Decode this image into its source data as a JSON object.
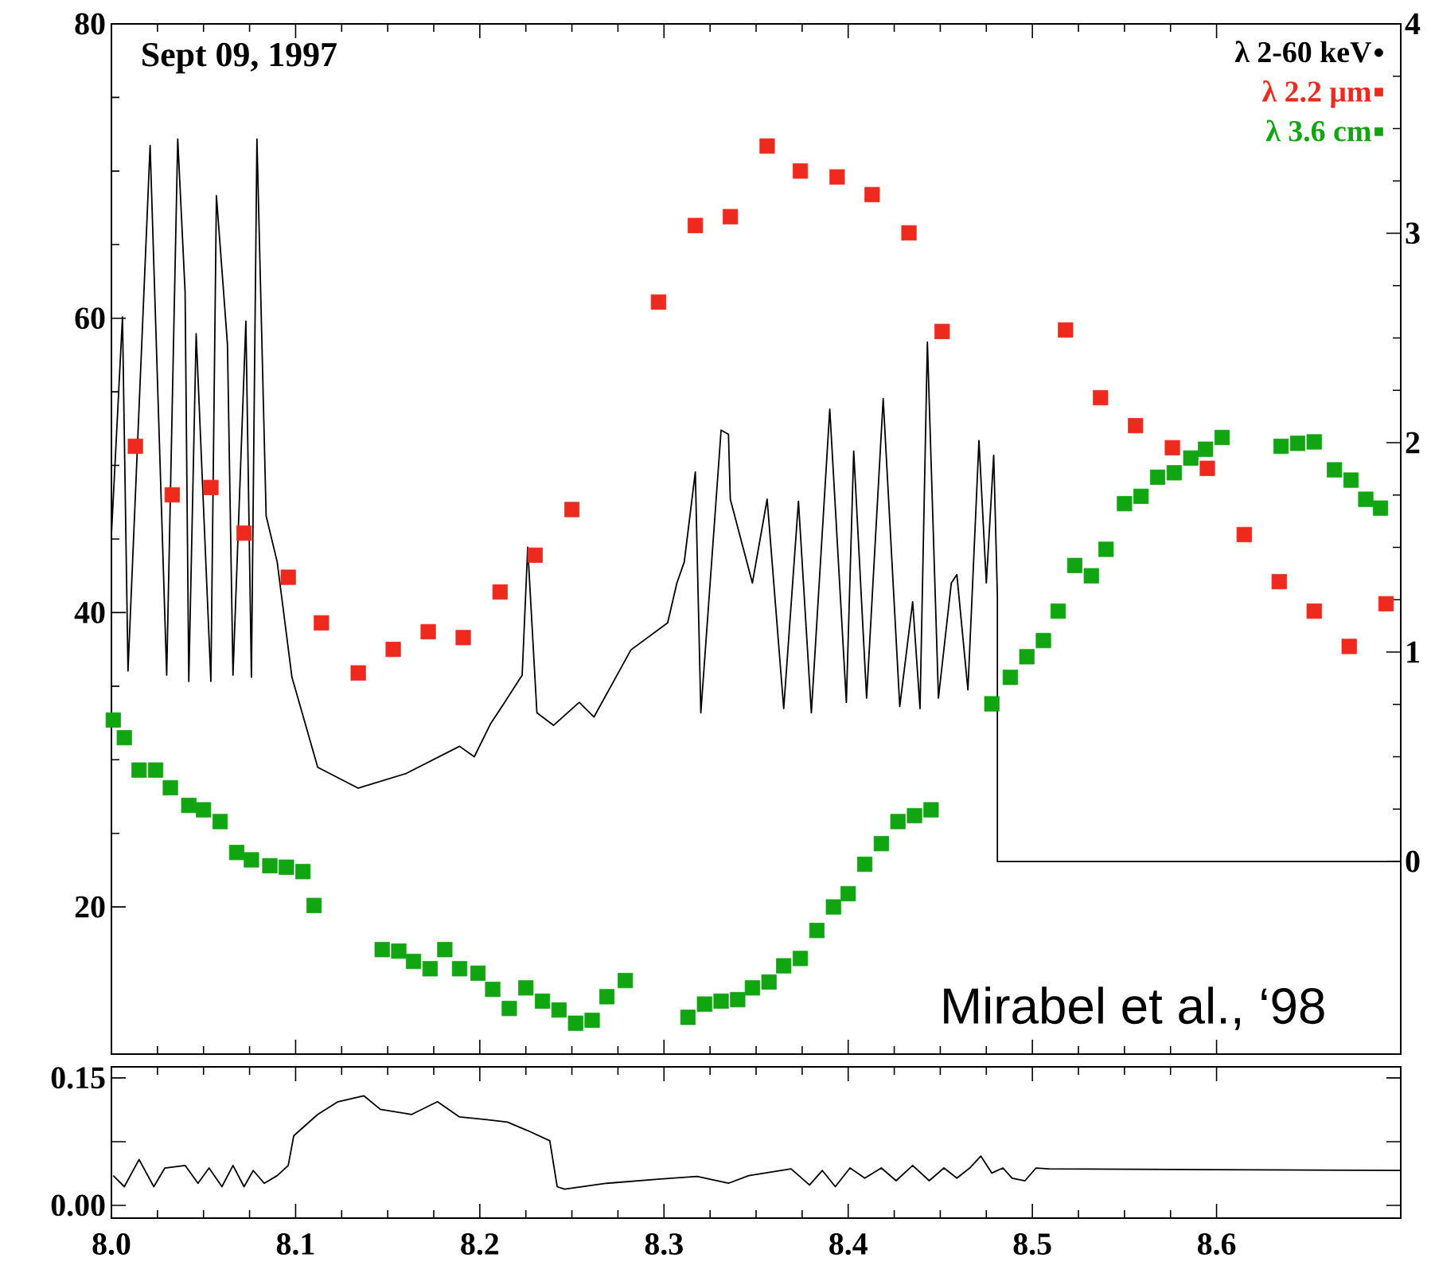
{
  "chart_data": [
    {
      "type": "scatter",
      "xlim": [
        8.0,
        8.7
      ],
      "ylim": [
        10,
        80
      ],
      "y2lim": [
        -0.92,
        4
      ],
      "xticks": [
        8.0,
        8.1,
        8.2,
        8.3,
        8.4,
        8.5,
        8.6
      ],
      "yticks": [
        20,
        40,
        60,
        80
      ],
      "y2ticks": [
        0,
        1,
        2,
        3,
        4
      ],
      "tick_labels": "y",
      "legend": "top right",
      "marker": "square",
      "annotations": [
        "Sept 09, 1997",
        "Mirabel et al., ‘98"
      ],
      "series": [
        {
          "name": "λ 2-60 keV",
          "type": "line",
          "axis": "y2",
          "marker": "none",
          "color": "#000000",
          "x": [
            8.0,
            8.006,
            8.009,
            8.021,
            8.03,
            8.036,
            8.04,
            8.042,
            8.046,
            8.054,
            8.057,
            8.063,
            8.066,
            8.073,
            8.076,
            8.079,
            8.084,
            8.09,
            8.098,
            8.112,
            8.134,
            8.16,
            8.189,
            8.197,
            8.206,
            8.212,
            8.223,
            8.226,
            8.231,
            8.24,
            8.254,
            8.262,
            8.282,
            8.302,
            8.307,
            8.311,
            8.317,
            8.32,
            8.331,
            8.335,
            8.336,
            8.348,
            8.356,
            8.365,
            8.373,
            8.38,
            8.39,
            8.399,
            8.403,
            8.41,
            8.419,
            8.428,
            8.435,
            8.439,
            8.443,
            8.449,
            8.456,
            8.459,
            8.465,
            8.471,
            8.475,
            8.479,
            8.481,
            8.481,
            8.7
          ],
          "values": [
            1.56,
            2.6,
            0.91,
            3.42,
            0.89,
            3.45,
            2.72,
            0.86,
            2.52,
            0.86,
            3.18,
            2.47,
            0.89,
            2.58,
            0.88,
            3.45,
            1.65,
            1.43,
            0.88,
            0.45,
            0.35,
            0.42,
            0.55,
            0.5,
            0.66,
            0.74,
            0.89,
            1.5,
            0.71,
            0.65,
            0.76,
            0.69,
            1.01,
            1.14,
            1.33,
            1.43,
            1.86,
            0.71,
            2.06,
            2.04,
            1.73,
            1.33,
            1.73,
            0.73,
            1.72,
            0.71,
            2.16,
            0.76,
            1.96,
            0.78,
            2.21,
            0.74,
            1.24,
            0.73,
            2.48,
            0.78,
            1.33,
            1.37,
            0.82,
            2.01,
            1.33,
            1.94,
            1.27,
            0.0,
            0.0
          ]
        },
        {
          "name": "λ 2.2 μm",
          "type": "scatter",
          "color": "#ee2a1e",
          "x": [
            8.013,
            8.033,
            8.054,
            8.072,
            8.096,
            8.114,
            8.134,
            8.153,
            8.172,
            8.191,
            8.211,
            8.23,
            8.25,
            8.297,
            8.317,
            8.336,
            8.356,
            8.374,
            8.394,
            8.413,
            8.433,
            8.451,
            8.518,
            8.537,
            8.556,
            8.576,
            8.595,
            8.615,
            8.634,
            8.653,
            8.672,
            8.692
          ],
          "values": [
            51.3,
            48.0,
            48.5,
            45.4,
            42.4,
            39.3,
            35.9,
            37.5,
            38.7,
            38.3,
            41.4,
            43.9,
            47.0,
            61.1,
            66.3,
            66.9,
            71.7,
            70.0,
            69.6,
            68.4,
            65.8,
            59.1,
            59.2,
            54.6,
            52.7,
            51.2,
            49.8,
            45.3,
            42.1,
            40.1,
            37.7,
            40.6
          ]
        },
        {
          "name": "λ 3.6 cm",
          "type": "scatter",
          "color": "#11a611",
          "x": [
            8.001,
            8.007,
            8.015,
            8.024,
            8.032,
            8.042,
            8.05,
            8.059,
            8.068,
            8.076,
            8.086,
            8.095,
            8.104,
            8.11,
            8.147,
            8.156,
            8.164,
            8.173,
            8.181,
            8.189,
            8.199,
            8.207,
            8.216,
            8.225,
            8.234,
            8.243,
            8.252,
            8.261,
            8.269,
            8.279,
            8.313,
            8.322,
            8.331,
            8.34,
            8.348,
            8.357,
            8.365,
            8.374,
            8.383,
            8.392,
            8.4,
            8.409,
            8.418,
            8.427,
            8.436,
            8.445,
            8.478,
            8.488,
            8.497,
            8.506,
            8.514,
            8.523,
            8.532,
            8.54,
            8.55,
            8.559,
            8.568,
            8.577,
            8.586,
            8.594,
            8.603,
            8.635,
            8.644,
            8.653,
            8.664,
            8.673,
            8.681,
            8.689
          ],
          "values": [
            32.7,
            31.5,
            29.3,
            29.3,
            28.1,
            26.9,
            26.6,
            25.8,
            23.7,
            23.2,
            22.8,
            22.7,
            22.4,
            20.1,
            17.1,
            17.0,
            16.3,
            15.8,
            17.1,
            15.8,
            15.5,
            14.4,
            13.1,
            14.5,
            13.6,
            13.0,
            12.1,
            12.3,
            13.9,
            15.0,
            12.5,
            13.4,
            13.6,
            13.7,
            14.5,
            14.9,
            16.0,
            16.5,
            18.4,
            20.0,
            20.9,
            22.9,
            24.3,
            25.8,
            26.2,
            26.6,
            33.8,
            35.6,
            37.0,
            38.1,
            40.1,
            43.2,
            42.5,
            44.3,
            47.4,
            47.9,
            49.2,
            49.5,
            50.5,
            51.1,
            51.9,
            51.3,
            51.5,
            51.6,
            49.7,
            49.0,
            47.7,
            47.1
          ]
        }
      ]
    },
    {
      "type": "line",
      "color": "#000000",
      "xlim": [
        8.0,
        8.7
      ],
      "ylim": [
        -0.015,
        0.163
      ],
      "xticks": [
        {
          "value": 8.0,
          "label": "8.0"
        },
        {
          "value": 8.1,
          "label": "8.1"
        },
        {
          "value": 8.2,
          "label": "8.2"
        },
        {
          "value": 8.3,
          "label": "8.3"
        },
        {
          "value": 8.4,
          "label": "8.4"
        },
        {
          "value": 8.5,
          "label": "8.5"
        },
        {
          "value": 8.6,
          "label": "8.6"
        }
      ],
      "yticks": [
        {
          "value": 0,
          "label": "0.00"
        },
        {
          "value": 0.075,
          "label": null
        },
        {
          "value": 0.15,
          "label": "0.15"
        }
      ],
      "x": [
        8.001,
        8.007,
        8.015,
        8.023,
        8.029,
        8.04,
        8.047,
        8.053,
        8.06,
        8.066,
        8.072,
        8.077,
        8.083,
        8.09,
        8.096,
        8.099,
        8.112,
        8.123,
        8.137,
        8.146,
        8.163,
        8.177,
        8.189,
        8.203,
        8.215,
        8.226,
        8.238,
        8.242,
        8.246,
        8.269,
        8.298,
        8.318,
        8.335,
        8.346,
        8.369,
        8.379,
        8.386,
        8.393,
        8.401,
        8.409,
        8.418,
        8.426,
        8.435,
        8.444,
        8.452,
        8.459,
        8.466,
        8.472,
        8.478,
        8.484,
        8.489,
        8.496,
        8.502,
        8.509,
        8.7
      ],
      "values": [
        0.035,
        0.022,
        0.054,
        0.022,
        0.044,
        0.047,
        0.026,
        0.044,
        0.022,
        0.047,
        0.022,
        0.041,
        0.026,
        0.035,
        0.047,
        0.082,
        0.107,
        0.122,
        0.129,
        0.113,
        0.107,
        0.122,
        0.104,
        0.101,
        0.098,
        0.088,
        0.076,
        0.022,
        0.019,
        0.026,
        0.031,
        0.034,
        0.026,
        0.035,
        0.043,
        0.024,
        0.041,
        0.022,
        0.044,
        0.032,
        0.044,
        0.029,
        0.047,
        0.029,
        0.044,
        0.032,
        0.044,
        0.058,
        0.038,
        0.044,
        0.032,
        0.029,
        0.044,
        0.043,
        0.041
      ]
    }
  ]
}
